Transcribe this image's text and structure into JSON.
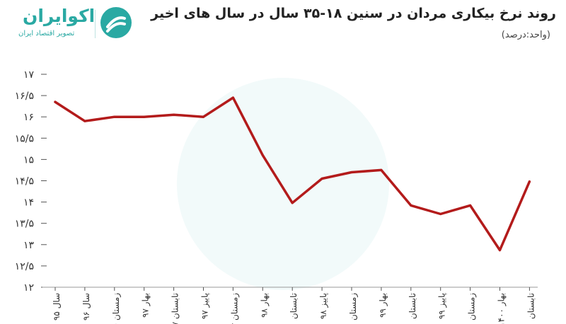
{
  "header": {
    "title": "روند نرخ بیکاری مردان در سنین ۱۸-۳۵ سال در سال های اخیر",
    "unit": "(واحد:درصد)"
  },
  "logo": {
    "name": "اکوایران",
    "tagline": "تصویر اقتصاد ایران",
    "color": "#2aa9a3"
  },
  "chart_data": {
    "type": "line",
    "x": [
      "سال ۹۵",
      "سال ۹۶",
      "زمستان ۹۶",
      "بهار ۹۷",
      "تابستان ۹۷",
      "پاییز ۹۷",
      "زمستان ۹۷",
      "بهار ۹۸",
      "تابستان ۹۸",
      "پاییز ۹۸",
      "زمستان ۹۸",
      "بهار ۹۹",
      "تابستان ۹۹",
      "پاییز ۹۹",
      "زمستان ۹۹",
      "بهار ۱۴۰۰",
      "تابستان ۱۴۰۰"
    ],
    "x_tick_labels": [
      "سال ۹۵",
      "سال ۹۶",
      "زمستان ۹۶",
      "بهار ۹۷",
      "تابستان ۹۷",
      "پاییز ۹۷",
      "زمستان ۹۷",
      "بهار ۹۸",
      "تابستان",
      "پاییز ۹۸",
      "زمستان",
      "بهار ۹۹",
      "تابستان",
      "پاییز ۹۹",
      "زمستان",
      "بهار ۱۴۰۰",
      "تابستان"
    ],
    "series": [
      {
        "values": [
          16.35,
          15.9,
          16.0,
          16.0,
          16.05,
          16.0,
          16.45,
          15.1,
          13.98,
          14.55,
          14.7,
          14.75,
          13.92,
          13.72,
          13.92,
          12.87,
          14.48
        ]
      }
    ],
    "y_tick_labels": [
      "۱۲",
      "۱۲/۵",
      "۱۳",
      "۱۳/۵",
      "۱۴",
      "۱۴/۵",
      "۱۵",
      "۱۵/۵",
      "۱۶",
      "۱۶/۵",
      "۱۷"
    ],
    "ylim": [
      12,
      17
    ],
    "line_color": "#b31b1b",
    "grid": false
  }
}
